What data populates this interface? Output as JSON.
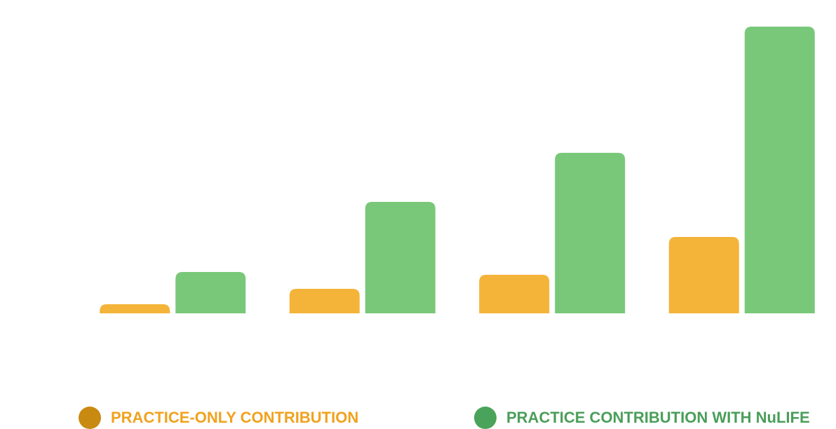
{
  "chart_data": {
    "type": "bar",
    "categories": [
      null,
      null,
      null,
      null
    ],
    "series": [
      {
        "name": "PRACTICE-ONLY CONTRIBUTION",
        "color": "#f4b43a",
        "legend_color": "#c98a12",
        "label_color": "#f0a21e",
        "values": [
          13,
          35,
          55,
          109
        ]
      },
      {
        "name": "PRACTICE CONTRIBUTION WITH NuLIFE",
        "color": "#79c879",
        "legend_color": "#4aa35a",
        "label_color": "#4a9e5a",
        "values": [
          59,
          159,
          229,
          409
        ]
      }
    ],
    "ylim": [
      0,
      409
    ],
    "grid": false
  }
}
